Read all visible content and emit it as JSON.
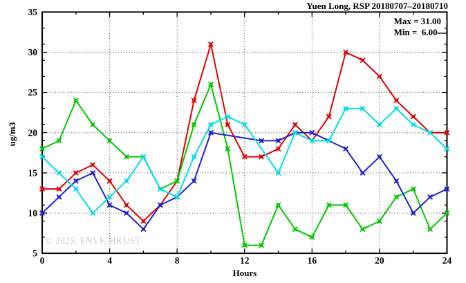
{
  "chart_data": {
    "type": "line",
    "title": "Yuen Long, RSP 20180707–20180710",
    "xlabel": "Hours",
    "ylabel": "ug/m3",
    "xlim": [
      0,
      24
    ],
    "ylim": [
      5,
      35
    ],
    "x_major_ticks": [
      0,
      4,
      8,
      12,
      16,
      20,
      24
    ],
    "x_minor_ticks": [
      2,
      6,
      10,
      14,
      18,
      22
    ],
    "y_major_ticks": [
      5,
      10,
      15,
      20,
      25,
      30,
      35
    ],
    "y_minor_ticks": [
      7,
      9,
      11,
      13,
      17,
      19,
      21,
      23,
      27,
      29,
      31,
      33
    ],
    "grid_x": [
      4,
      8,
      12,
      16,
      20
    ],
    "grid_y": [
      10,
      15,
      20,
      25,
      30
    ],
    "grid_on": true,
    "legend_position": "none",
    "hours": [
      0,
      1,
      2,
      3,
      4,
      5,
      6,
      7,
      8,
      9,
      10,
      11,
      12,
      13,
      14,
      15,
      16,
      17,
      18,
      19,
      20,
      21,
      22,
      23,
      24
    ],
    "series": [
      {
        "name": "day-20180707-red",
        "color": "#e00000",
        "values": [
          13,
          13,
          15,
          16,
          14,
          11,
          9,
          11,
          14,
          24,
          31,
          21,
          17,
          17,
          18,
          21,
          19,
          22,
          30,
          29,
          27,
          24,
          22,
          20,
          20
        ]
      },
      {
        "name": "day-20180708-green",
        "color": "#00c800",
        "values": [
          18,
          19,
          24,
          21,
          19,
          17,
          17,
          13,
          14,
          21,
          26,
          18,
          6,
          6,
          11,
          8,
          7,
          11,
          11,
          8,
          9,
          12,
          13,
          8,
          10
        ]
      },
      {
        "name": "day-20180709-blue",
        "color": "#2020d0",
        "values": [
          10,
          12,
          14,
          15,
          11,
          10,
          8,
          11,
          12,
          14,
          20,
          null,
          null,
          19,
          19,
          20,
          20,
          19,
          18,
          15,
          17,
          14,
          10,
          12,
          13
        ]
      },
      {
        "name": "day-20180710-cyan",
        "color": "#00dde6",
        "values": [
          17,
          15,
          13,
          10,
          12,
          14,
          17,
          13,
          12,
          17,
          21,
          22,
          21,
          null,
          15,
          20,
          19,
          19,
          23,
          23,
          21,
          23,
          21,
          20,
          18
        ]
      }
    ],
    "annotations": {
      "max_label": "Max = 31.00",
      "min_label": "Min =  6.00"
    },
    "watermark": "© 2025, ENVF, HKUST"
  }
}
